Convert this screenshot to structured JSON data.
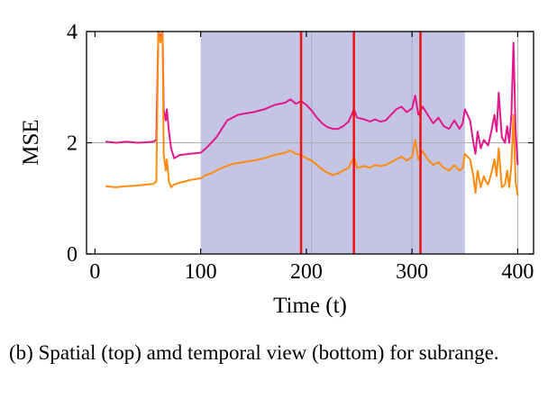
{
  "chart_data": {
    "type": "line",
    "xlabel": "Time (t)",
    "ylabel": "MSE",
    "xlim": [
      -8,
      415
    ],
    "ylim": [
      0,
      4
    ],
    "xticks": [
      "0",
      "100",
      "200",
      "300",
      "400"
    ],
    "yticks": [
      "0",
      "2",
      "4"
    ],
    "grid": "single horizontal line at y=2, vertical line at x=400",
    "highlight_range": {
      "x": [
        100,
        350
      ],
      "color": "#c4c4e4"
    },
    "vertical_markers": {
      "x": [
        195,
        245,
        308
      ],
      "color": "#ee1111"
    },
    "faint_verticals": [
      205,
      300
    ],
    "series": [
      {
        "color": "#e2188c",
        "points": [
          [
            10,
            2.02
          ],
          [
            20,
            2.0
          ],
          [
            30,
            2.02
          ],
          [
            40,
            2.0
          ],
          [
            50,
            2.01
          ],
          [
            55,
            2.02
          ],
          [
            58,
            2.05
          ],
          [
            60,
            4.1
          ],
          [
            62,
            3.9
          ],
          [
            64,
            4.1
          ],
          [
            65,
            2.6
          ],
          [
            67,
            2.4
          ],
          [
            68,
            2.6
          ],
          [
            70,
            2.2
          ],
          [
            72,
            1.9
          ],
          [
            75,
            1.72
          ],
          [
            80,
            1.78
          ],
          [
            90,
            1.8
          ],
          [
            100,
            1.82
          ],
          [
            105,
            1.9
          ],
          [
            110,
            2.0
          ],
          [
            115,
            2.1
          ],
          [
            120,
            2.25
          ],
          [
            125,
            2.4
          ],
          [
            130,
            2.45
          ],
          [
            135,
            2.5
          ],
          [
            140,
            2.52
          ],
          [
            150,
            2.55
          ],
          [
            160,
            2.6
          ],
          [
            170,
            2.68
          ],
          [
            180,
            2.72
          ],
          [
            185,
            2.78
          ],
          [
            190,
            2.7
          ],
          [
            195,
            2.75
          ],
          [
            200,
            2.68
          ],
          [
            205,
            2.58
          ],
          [
            210,
            2.45
          ],
          [
            215,
            2.35
          ],
          [
            220,
            2.28
          ],
          [
            225,
            2.25
          ],
          [
            230,
            2.25
          ],
          [
            235,
            2.3
          ],
          [
            240,
            2.38
          ],
          [
            245,
            2.6
          ],
          [
            248,
            2.45
          ],
          [
            255,
            2.42
          ],
          [
            260,
            2.38
          ],
          [
            265,
            2.42
          ],
          [
            270,
            2.38
          ],
          [
            275,
            2.4
          ],
          [
            280,
            2.5
          ],
          [
            285,
            2.6
          ],
          [
            290,
            2.65
          ],
          [
            295,
            2.55
          ],
          [
            300,
            2.62
          ],
          [
            303,
            2.85
          ],
          [
            306,
            2.5
          ],
          [
            310,
            2.65
          ],
          [
            315,
            2.5
          ],
          [
            320,
            2.35
          ],
          [
            325,
            2.45
          ],
          [
            330,
            2.3
          ],
          [
            335,
            2.25
          ],
          [
            340,
            2.4
          ],
          [
            345,
            2.25
          ],
          [
            348,
            2.35
          ],
          [
            350,
            2.6
          ],
          [
            355,
            2.4
          ],
          [
            358,
            2.0
          ],
          [
            360,
            1.8
          ],
          [
            362,
            2.2
          ],
          [
            365,
            1.9
          ],
          [
            368,
            2.05
          ],
          [
            370,
            2.0
          ],
          [
            372,
            1.95
          ],
          [
            375,
            2.2
          ],
          [
            378,
            2.5
          ],
          [
            380,
            2.2
          ],
          [
            382,
            2.9
          ],
          [
            385,
            2.1
          ],
          [
            388,
            2.0
          ],
          [
            390,
            2.3
          ],
          [
            392,
            2.0
          ],
          [
            394,
            2.5
          ],
          [
            396,
            3.8
          ],
          [
            398,
            2.2
          ],
          [
            400,
            1.6
          ]
        ]
      },
      {
        "color": "#ff8c10",
        "points": [
          [
            10,
            1.22
          ],
          [
            20,
            1.2
          ],
          [
            30,
            1.22
          ],
          [
            40,
            1.23
          ],
          [
            50,
            1.25
          ],
          [
            55,
            1.26
          ],
          [
            58,
            1.3
          ],
          [
            60,
            4.1
          ],
          [
            62,
            3.8
          ],
          [
            64,
            4.1
          ],
          [
            65,
            1.8
          ],
          [
            67,
            1.5
          ],
          [
            68,
            1.7
          ],
          [
            70,
            1.3
          ],
          [
            72,
            1.2
          ],
          [
            75,
            1.25
          ],
          [
            80,
            1.28
          ],
          [
            90,
            1.33
          ],
          [
            100,
            1.36
          ],
          [
            105,
            1.42
          ],
          [
            110,
            1.45
          ],
          [
            120,
            1.55
          ],
          [
            130,
            1.62
          ],
          [
            140,
            1.65
          ],
          [
            150,
            1.68
          ],
          [
            160,
            1.72
          ],
          [
            170,
            1.78
          ],
          [
            180,
            1.82
          ],
          [
            185,
            1.86
          ],
          [
            190,
            1.8
          ],
          [
            195,
            1.78
          ],
          [
            200,
            1.72
          ],
          [
            205,
            1.68
          ],
          [
            210,
            1.6
          ],
          [
            215,
            1.52
          ],
          [
            220,
            1.46
          ],
          [
            225,
            1.42
          ],
          [
            230,
            1.45
          ],
          [
            235,
            1.5
          ],
          [
            240,
            1.55
          ],
          [
            245,
            1.75
          ],
          [
            248,
            1.55
          ],
          [
            255,
            1.58
          ],
          [
            260,
            1.55
          ],
          [
            265,
            1.6
          ],
          [
            270,
            1.58
          ],
          [
            275,
            1.6
          ],
          [
            280,
            1.65
          ],
          [
            285,
            1.7
          ],
          [
            290,
            1.75
          ],
          [
            295,
            1.68
          ],
          [
            300,
            1.75
          ],
          [
            303,
            2.05
          ],
          [
            306,
            1.7
          ],
          [
            310,
            1.85
          ],
          [
            315,
            1.7
          ],
          [
            320,
            1.6
          ],
          [
            325,
            1.65
          ],
          [
            330,
            1.55
          ],
          [
            335,
            1.5
          ],
          [
            340,
            1.6
          ],
          [
            345,
            1.5
          ],
          [
            348,
            1.55
          ],
          [
            350,
            1.8
          ],
          [
            355,
            1.7
          ],
          [
            358,
            1.4
          ],
          [
            360,
            1.1
          ],
          [
            362,
            1.5
          ],
          [
            365,
            1.2
          ],
          [
            368,
            1.4
          ],
          [
            370,
            1.3
          ],
          [
            372,
            1.25
          ],
          [
            375,
            1.45
          ],
          [
            378,
            1.7
          ],
          [
            380,
            1.4
          ],
          [
            382,
            1.9
          ],
          [
            385,
            1.2
          ],
          [
            388,
            1.25
          ],
          [
            390,
            1.5
          ],
          [
            392,
            1.2
          ],
          [
            394,
            1.6
          ],
          [
            396,
            2.5
          ],
          [
            398,
            1.3
          ],
          [
            400,
            1.05
          ]
        ]
      }
    ]
  },
  "caption": "(b) Spatial (top) amd temporal view (bottom) for subrange."
}
